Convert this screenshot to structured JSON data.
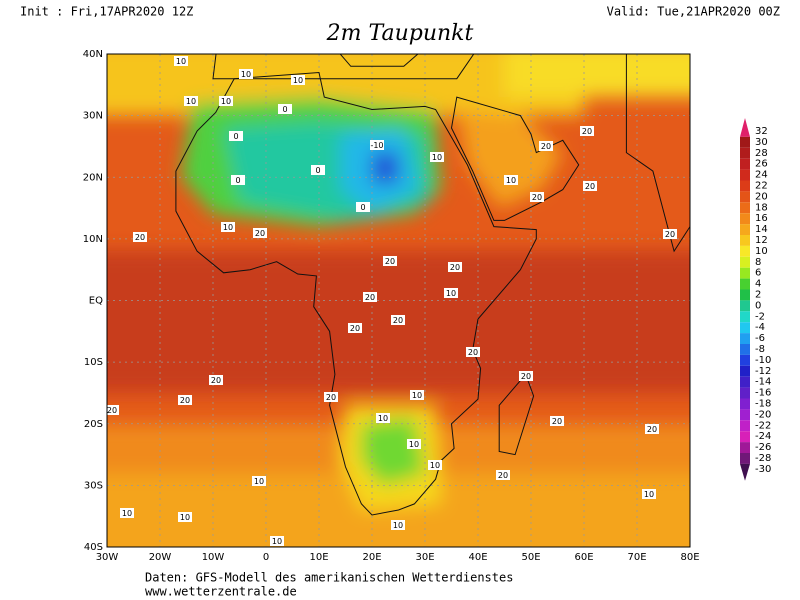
{
  "header": {
    "init": "Init : Fri,17APR2020 12Z",
    "valid": "Valid: Tue,21APR2020 00Z",
    "title": "2m Taupunkt"
  },
  "map": {
    "lat_labels": [
      "40N",
      "30N",
      "20N",
      "10N",
      "EQ",
      "10S",
      "20S",
      "30S",
      "40S"
    ],
    "lon_labels": [
      "30W",
      "20W",
      "10W",
      "0",
      "10E",
      "20E",
      "30E",
      "40E",
      "50E",
      "60E",
      "70E",
      "80E"
    ],
    "contour_labels": [
      10,
      10,
      10,
      10,
      10,
      0,
      0,
      0,
      -10,
      0,
      0,
      10,
      10,
      10,
      20,
      20,
      20,
      20,
      10,
      20,
      20,
      20,
      20,
      20,
      20,
      20,
      20,
      20,
      10,
      10,
      10,
      10,
      20,
      20,
      20,
      20,
      10,
      10,
      10,
      10,
      10,
      10,
      20,
      20,
      20,
      20
    ]
  },
  "colorbar": {
    "ticks": [
      32,
      30,
      28,
      26,
      24,
      22,
      20,
      18,
      16,
      14,
      12,
      10,
      8,
      6,
      4,
      2,
      0,
      -2,
      -4,
      -6,
      -8,
      -10,
      -12,
      -14,
      -16,
      -18,
      -20,
      -22,
      -24,
      -26,
      -28,
      -30
    ],
    "colors": [
      "#e0206a",
      "#a01818",
      "#b01c1c",
      "#c02020",
      "#d02a1c",
      "#dc3c18",
      "#e45418",
      "#ec6c18",
      "#f28a1a",
      "#f6a81c",
      "#f8c81e",
      "#f8e828",
      "#d8f020",
      "#98e820",
      "#48d030",
      "#20c048",
      "#20c890",
      "#20d8c8",
      "#20c8f0",
      "#20a0f0",
      "#2070e8",
      "#2040e0",
      "#2020c8",
      "#4020c8",
      "#6020c8",
      "#8020d0",
      "#a020d0",
      "#c020c8",
      "#d820b8",
      "#a01898",
      "#701878",
      "#401050"
    ]
  },
  "footer": {
    "line1": "Daten: GFS-Modell des amerikanischen Wetterdienstes",
    "line2": "www.wetterzentrale.de"
  }
}
